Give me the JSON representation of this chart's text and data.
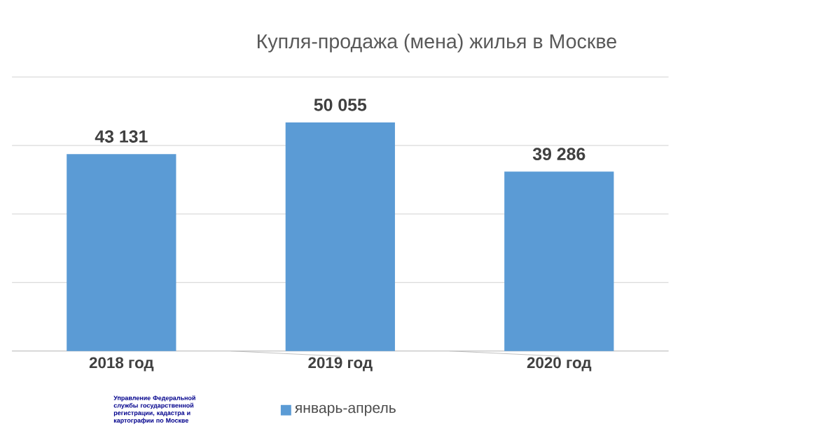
{
  "chart_data": {
    "type": "bar",
    "title": "Купля-продажа (мена)  жилья в Москве",
    "categories": [
      "2018 год",
      "2019 год",
      "2020 год"
    ],
    "series": [
      {
        "name": "январь-апрель",
        "color": "#5b9bd5",
        "values": [
          43131,
          50055,
          39286
        ],
        "value_labels": [
          "43 131",
          "50 055",
          "39 286"
        ]
      }
    ],
    "ylim": [
      0,
      60000
    ],
    "yticks": [
      {
        "value": 0,
        "label": null
      },
      {
        "value": 15000,
        "label": null
      },
      {
        "value": 30000,
        "label": null
      },
      {
        "value": 45000,
        "label": null
      },
      {
        "value": 60000,
        "label": null
      }
    ],
    "tick_labels": "x",
    "grid": "y",
    "legend": "bottom",
    "annotations": [
      "Управление Федеральной службы государственной регистрации, кадастра и картографии по Москве"
    ]
  }
}
